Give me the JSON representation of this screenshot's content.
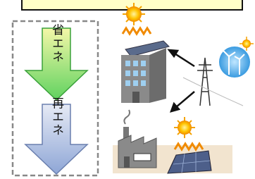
{
  "arrows": [
    {
      "label": "省エネ"
    },
    {
      "label": "再エネ"
    }
  ]
}
